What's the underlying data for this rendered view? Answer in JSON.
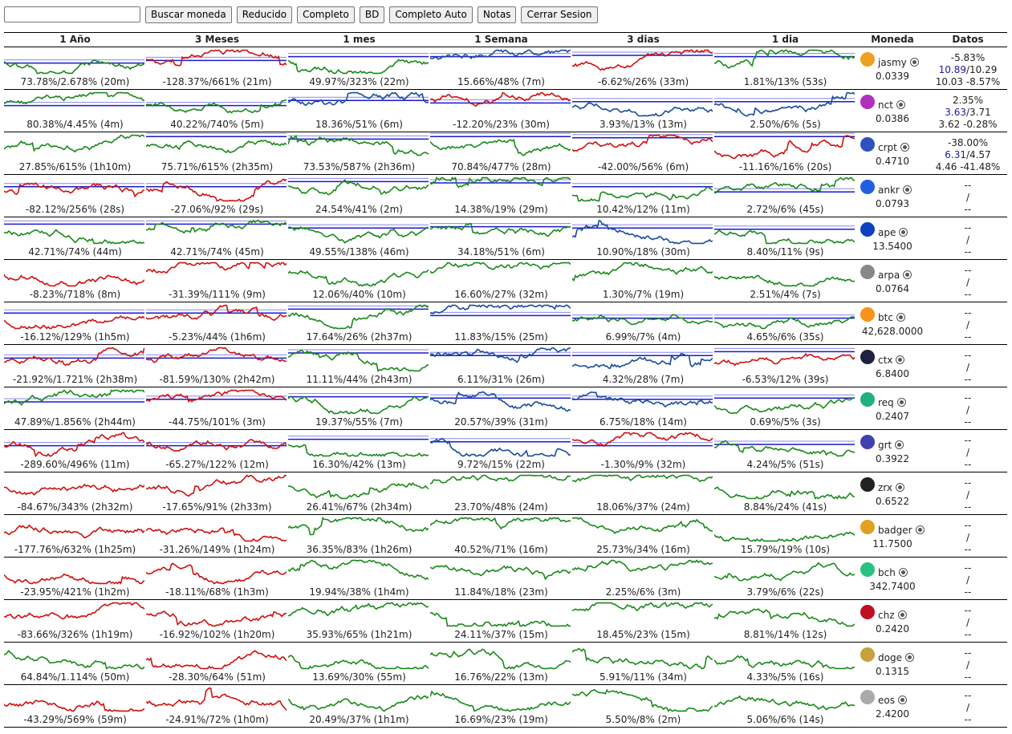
{
  "toolbar": {
    "search_value": "",
    "buttons": [
      "Buscar moneda",
      "Reducido",
      "Completo",
      "BD",
      "Completo Auto",
      "Notas",
      "Cerrar Sesion"
    ]
  },
  "headers": [
    "1 Año",
    "3 Meses",
    "1 mes",
    "1 Semana",
    "3 dias",
    "1 dia",
    "Moneda",
    "Datos"
  ],
  "colors": {
    "green": "#1a8a1a",
    "red": "#d01010",
    "blue": "#1a1ad0",
    "mixed": "#1a4aa0"
  },
  "rows": [
    {
      "coin": "jasmy",
      "price": "0.0339",
      "icon": "#f0a020",
      "d1": "-5.83%",
      "d2a": "10.89",
      "d2b": "/10.29",
      "d3": "10.03 -8.57%",
      "cells": [
        {
          "l": "73.78%/2.678% (20m)",
          "c": "green",
          "seed": 1,
          "lv": 0.55
        },
        {
          "l": "-128.37%/661% (21m)",
          "c": "red",
          "seed": 2,
          "lv": 0.45
        },
        {
          "l": "49.97%/323% (22m)",
          "c": "green",
          "seed": 3,
          "lv": 0.3
        },
        {
          "l": "15.66%/48% (7m)",
          "c": "mixed",
          "seed": 4,
          "lv": 0.3
        },
        {
          "l": "-6.62%/26% (33m)",
          "c": "red",
          "seed": 5,
          "lv": 0.25
        },
        {
          "l": "1.81%/13% (53s)",
          "c": "green",
          "seed": 6,
          "lv": 0.3
        }
      ]
    },
    {
      "coin": "nct",
      "price": "0.0386",
      "icon": "#b030c0",
      "d1": "2.35%",
      "d2a": "3.63",
      "d2b": "/3.71",
      "d3": "3.62 -0.28%",
      "cells": [
        {
          "l": "80.38%/4.45% (4m)",
          "c": "green",
          "seed": 7,
          "lv": 0.55
        },
        {
          "l": "40.22%/740% (5m)",
          "c": "green",
          "seed": 8,
          "lv": 0.55
        },
        {
          "l": "18.36%/51% (6m)",
          "c": "mixed",
          "seed": 9,
          "lv": 0.35
        },
        {
          "l": "-12.20%/23% (30m)",
          "c": "red",
          "seed": 10,
          "lv": 0.45
        },
        {
          "l": "3.93%/13% (13m)",
          "c": "mixed",
          "seed": 11,
          "lv": 0.4
        },
        {
          "l": "2.50%/6% (5s)",
          "c": "mixed",
          "seed": 12,
          "lv": 0.4
        }
      ]
    },
    {
      "coin": "crpt",
      "price": "0.4710",
      "icon": "#3050c0",
      "d1": "-38.00%",
      "d2a": "6.31",
      "d2b": "/4.57",
      "d3": "4.46 -41.48%",
      "cells": [
        {
          "l": "27.85%/615% (1h10m)",
          "c": "green",
          "seed": 13,
          "lv": 0
        },
        {
          "l": "75.71%/615% (2h35m)",
          "c": "green",
          "seed": 14,
          "lv": 0.1
        },
        {
          "l": "73.53%/587% (2h36m)",
          "c": "green",
          "seed": 15,
          "lv": 0.2
        },
        {
          "l": "70.84%/477% (28m)",
          "c": "green",
          "seed": 16,
          "lv": 0.1
        },
        {
          "l": "-42.00%/56% (6m)",
          "c": "red",
          "seed": 17,
          "lv": 0.15
        },
        {
          "l": "-11.16%/16% (20s)",
          "c": "red",
          "seed": 18,
          "lv": 0.1
        }
      ]
    },
    {
      "coin": "ankr",
      "price": "0.0793",
      "icon": "#2060e0",
      "d1": "--",
      "d2a": "",
      "d2b": "/",
      "d3": "--",
      "cells": [
        {
          "l": "-82.12%/256% (28s)",
          "c": "red",
          "seed": 19,
          "lv": 0.4
        },
        {
          "l": "-27.06%/92% (29s)",
          "c": "red",
          "seed": 20,
          "lv": 0.4
        },
        {
          "l": "24.54%/41% (2m)",
          "c": "green",
          "seed": 21,
          "lv": 0.2
        },
        {
          "l": "14.38%/19% (29m)",
          "c": "green",
          "seed": 22,
          "lv": 0.25
        },
        {
          "l": "10.42%/12% (11m)",
          "c": "green",
          "seed": 23,
          "lv": 0.4
        },
        {
          "l": "2.72%/6% (45s)",
          "c": "green",
          "seed": 24,
          "lv": 0.6
        }
      ]
    },
    {
      "coin": "ape",
      "price": "13.5400",
      "icon": "#1040c0",
      "d1": "--",
      "d2a": "",
      "d2b": "/",
      "d3": "--",
      "cells": [
        {
          "l": "42.71%/74% (44m)",
          "c": "green",
          "seed": 25,
          "lv": 0.2
        },
        {
          "l": "42.71%/74% (45m)",
          "c": "green",
          "seed": 26,
          "lv": 0.2
        },
        {
          "l": "49.55%/138% (46m)",
          "c": "green",
          "seed": 27,
          "lv": 0.35
        },
        {
          "l": "34.18%/51% (6m)",
          "c": "green",
          "seed": 28,
          "lv": 0.3
        },
        {
          "l": "10.90%/18% (30m)",
          "c": "mixed",
          "seed": 29,
          "lv": 0.35
        },
        {
          "l": "8.40%/11% (9s)",
          "c": "green",
          "seed": 30,
          "lv": 0.4
        }
      ]
    },
    {
      "coin": "arpa",
      "price": "0.0764",
      "icon": "#888888",
      "d1": "--",
      "d2a": "",
      "d2b": "/",
      "d3": "--",
      "cells": [
        {
          "l": "-8.23%/718% (8m)",
          "c": "red",
          "seed": 31,
          "lv": 0
        },
        {
          "l": "-31.39%/111% (9m)",
          "c": "red",
          "seed": 32,
          "lv": 0
        },
        {
          "l": "12.06%/40% (10m)",
          "c": "green",
          "seed": 33,
          "lv": 0
        },
        {
          "l": "16.60%/27% (32m)",
          "c": "green",
          "seed": 34,
          "lv": 0
        },
        {
          "l": "1.30%/7% (19m)",
          "c": "green",
          "seed": 35,
          "lv": 0
        },
        {
          "l": "2.51%/4% (7s)",
          "c": "green",
          "seed": 36,
          "lv": 0
        }
      ]
    },
    {
      "coin": "btc",
      "price": "42,628.0000",
      "icon": "#f7931a",
      "d1": "--",
      "d2a": "",
      "d2b": "/",
      "d3": "--",
      "cells": [
        {
          "l": "-16.12%/129% (1h5m)",
          "c": "red",
          "seed": 37,
          "lv": 0.35
        },
        {
          "l": "-5.23%/44% (1h6m)",
          "c": "red",
          "seed": 38,
          "lv": 0.35
        },
        {
          "l": "17.64%/26% (2h37m)",
          "c": "green",
          "seed": 39,
          "lv": 0.2
        },
        {
          "l": "11.83%/15% (25m)",
          "c": "mixed",
          "seed": 40,
          "lv": 0.45
        },
        {
          "l": "6.99%/7% (4m)",
          "c": "green",
          "seed": 41,
          "lv": 0.55
        },
        {
          "l": "4.65%/6% (35s)",
          "c": "green",
          "seed": 42,
          "lv": 0.55
        }
      ]
    },
    {
      "coin": "ctx",
      "price": "6.8400",
      "icon": "#202040",
      "d1": "--",
      "d2a": "",
      "d2b": "/",
      "d3": "--",
      "cells": [
        {
          "l": "-21.92%/1.721% (2h38m)",
          "c": "red",
          "seed": 43,
          "lv": 0.45
        },
        {
          "l": "-81.59%/130% (2h42m)",
          "c": "red",
          "seed": 44,
          "lv": 0.45
        },
        {
          "l": "11.11%/44% (2h43m)",
          "c": "green",
          "seed": 45,
          "lv": 0.25
        },
        {
          "l": "6.11%/31% (26m)",
          "c": "mixed",
          "seed": 46,
          "lv": 0.35
        },
        {
          "l": "4.32%/28% (7m)",
          "c": "mixed",
          "seed": 47,
          "lv": 0.35
        },
        {
          "l": "-6.53%/12% (39s)",
          "c": "red",
          "seed": 48,
          "lv": 0.2
        }
      ]
    },
    {
      "coin": "req",
      "price": "0.2407",
      "icon": "#20b080",
      "d1": "--",
      "d2a": "",
      "d2b": "/",
      "d3": "--",
      "cells": [
        {
          "l": "47.89%/1.856% (2h44m)",
          "c": "green",
          "seed": 49,
          "lv": 0.5
        },
        {
          "l": "-44.75%/101% (3m)",
          "c": "red",
          "seed": 50,
          "lv": 0.4
        },
        {
          "l": "19.37%/55% (7m)",
          "c": "green",
          "seed": 51,
          "lv": 0.3
        },
        {
          "l": "20.57%/39% (31m)",
          "c": "mixed",
          "seed": 52,
          "lv": 0.35
        },
        {
          "l": "6.75%/18% (14m)",
          "c": "mixed",
          "seed": 53,
          "lv": 0.4
        },
        {
          "l": "0.69%/5% (3s)",
          "c": "green",
          "seed": 54,
          "lv": 0.35
        }
      ]
    },
    {
      "coin": "grt",
      "price": "0.3922",
      "icon": "#4040b0",
      "d1": "--",
      "d2a": "",
      "d2b": "/",
      "d3": "--",
      "cells": [
        {
          "l": "-289.60%/496% (11m)",
          "c": "red",
          "seed": 55,
          "lv": 0.55
        },
        {
          "l": "-65.27%/122% (12m)",
          "c": "red",
          "seed": 56,
          "lv": 0.55
        },
        {
          "l": "16.30%/42% (13m)",
          "c": "green",
          "seed": 57,
          "lv": 0.3
        },
        {
          "l": "9.72%/15% (22m)",
          "c": "mixed",
          "seed": 58,
          "lv": 0.4
        },
        {
          "l": "-1.30%/9% (32m)",
          "c": "red",
          "seed": 59,
          "lv": 0.55
        },
        {
          "l": "4.24%/5% (51s)",
          "c": "green",
          "seed": 60,
          "lv": 0.5
        }
      ]
    },
    {
      "coin": "zrx",
      "price": "0.6522",
      "icon": "#222222",
      "d1": "--",
      "d2a": "",
      "d2b": "/",
      "d3": "--",
      "cells": [
        {
          "l": "-84.67%/343% (2h32m)",
          "c": "red",
          "seed": 61,
          "lv": 0
        },
        {
          "l": "-17.65%/91% (2h33m)",
          "c": "red",
          "seed": 62,
          "lv": 0
        },
        {
          "l": "26.41%/67% (2h34m)",
          "c": "green",
          "seed": 63,
          "lv": 0
        },
        {
          "l": "23.70%/48% (24m)",
          "c": "green",
          "seed": 64,
          "lv": 0
        },
        {
          "l": "18.06%/37% (24m)",
          "c": "green",
          "seed": 65,
          "lv": 0
        },
        {
          "l": "8.84%/24% (41s)",
          "c": "green",
          "seed": 66,
          "lv": 0
        }
      ]
    },
    {
      "coin": "badger",
      "price": "11.7500",
      "icon": "#e0a020",
      "d1": "--",
      "d2a": "",
      "d2b": "/",
      "d3": "--",
      "cells": [
        {
          "l": "-177.76%/632% (1h25m)",
          "c": "red",
          "seed": 67,
          "lv": 0
        },
        {
          "l": "-31.26%/149% (1h24m)",
          "c": "red",
          "seed": 68,
          "lv": 0
        },
        {
          "l": "36.35%/83% (1h26m)",
          "c": "green",
          "seed": 69,
          "lv": 0
        },
        {
          "l": "40.52%/71% (16m)",
          "c": "green",
          "seed": 70,
          "lv": 0
        },
        {
          "l": "25.73%/34% (16m)",
          "c": "green",
          "seed": 71,
          "lv": 0
        },
        {
          "l": "15.79%/19% (10s)",
          "c": "green",
          "seed": 72,
          "lv": 0
        }
      ]
    },
    {
      "coin": "bch",
      "price": "342.7400",
      "icon": "#2cc080",
      "d1": "--",
      "d2a": "",
      "d2b": "/",
      "d3": "--",
      "cells": [
        {
          "l": "-23.95%/421% (1h2m)",
          "c": "red",
          "seed": 73,
          "lv": 0
        },
        {
          "l": "-18.11%/68% (1h3m)",
          "c": "red",
          "seed": 74,
          "lv": 0
        },
        {
          "l": "19.94%/38% (1h4m)",
          "c": "green",
          "seed": 75,
          "lv": 0
        },
        {
          "l": "11.84%/18% (23m)",
          "c": "green",
          "seed": 76,
          "lv": 0
        },
        {
          "l": "2.25%/6% (3m)",
          "c": "green",
          "seed": 77,
          "lv": 0
        },
        {
          "l": "3.79%/6% (22s)",
          "c": "green",
          "seed": 78,
          "lv": 0
        }
      ]
    },
    {
      "coin": "chz",
      "price": "0.2420",
      "icon": "#c01020",
      "d1": "--",
      "d2a": "",
      "d2b": "/",
      "d3": "--",
      "cells": [
        {
          "l": "-83.66%/326% (1h19m)",
          "c": "red",
          "seed": 79,
          "lv": 0
        },
        {
          "l": "-16.92%/102% (1h20m)",
          "c": "red",
          "seed": 80,
          "lv": 0
        },
        {
          "l": "35.93%/65% (1h21m)",
          "c": "green",
          "seed": 81,
          "lv": 0
        },
        {
          "l": "24.11%/37% (15m)",
          "c": "green",
          "seed": 82,
          "lv": 0
        },
        {
          "l": "18.45%/23% (15m)",
          "c": "green",
          "seed": 83,
          "lv": 0
        },
        {
          "l": "8.81%/14% (12s)",
          "c": "green",
          "seed": 84,
          "lv": 0
        }
      ]
    },
    {
      "coin": "doge",
      "price": "0.1315",
      "icon": "#c8a040",
      "d1": "--",
      "d2a": "",
      "d2b": "/",
      "d3": "--",
      "cells": [
        {
          "l": "64.84%/1.114% (50m)",
          "c": "green",
          "seed": 85,
          "lv": 0
        },
        {
          "l": "-28.30%/64% (51m)",
          "c": "red",
          "seed": 86,
          "lv": 0
        },
        {
          "l": "13.69%/30% (55m)",
          "c": "green",
          "seed": 87,
          "lv": 0
        },
        {
          "l": "16.76%/22% (13m)",
          "c": "green",
          "seed": 88,
          "lv": 0
        },
        {
          "l": "5.91%/11% (34m)",
          "c": "green",
          "seed": 89,
          "lv": 0
        },
        {
          "l": "4.33%/5% (16s)",
          "c": "green",
          "seed": 90,
          "lv": 0
        }
      ]
    },
    {
      "coin": "eos",
      "price": "2.4200",
      "icon": "#aaaaaa",
      "d1": "--",
      "d2a": "",
      "d2b": "/",
      "d3": "--",
      "cells": [
        {
          "l": "-43.29%/569% (59m)",
          "c": "red",
          "seed": 91,
          "lv": 0
        },
        {
          "l": "-24.91%/72% (1h0m)",
          "c": "red",
          "seed": 92,
          "lv": 0
        },
        {
          "l": "20.49%/37% (1h1m)",
          "c": "green",
          "seed": 93,
          "lv": 0
        },
        {
          "l": "16.69%/23% (19m)",
          "c": "green",
          "seed": 94,
          "lv": 0
        },
        {
          "l": "5.50%/8% (2m)",
          "c": "green",
          "seed": 95,
          "lv": 0
        },
        {
          "l": "5.06%/6% (14s)",
          "c": "green",
          "seed": 96,
          "lv": 0
        }
      ]
    }
  ]
}
